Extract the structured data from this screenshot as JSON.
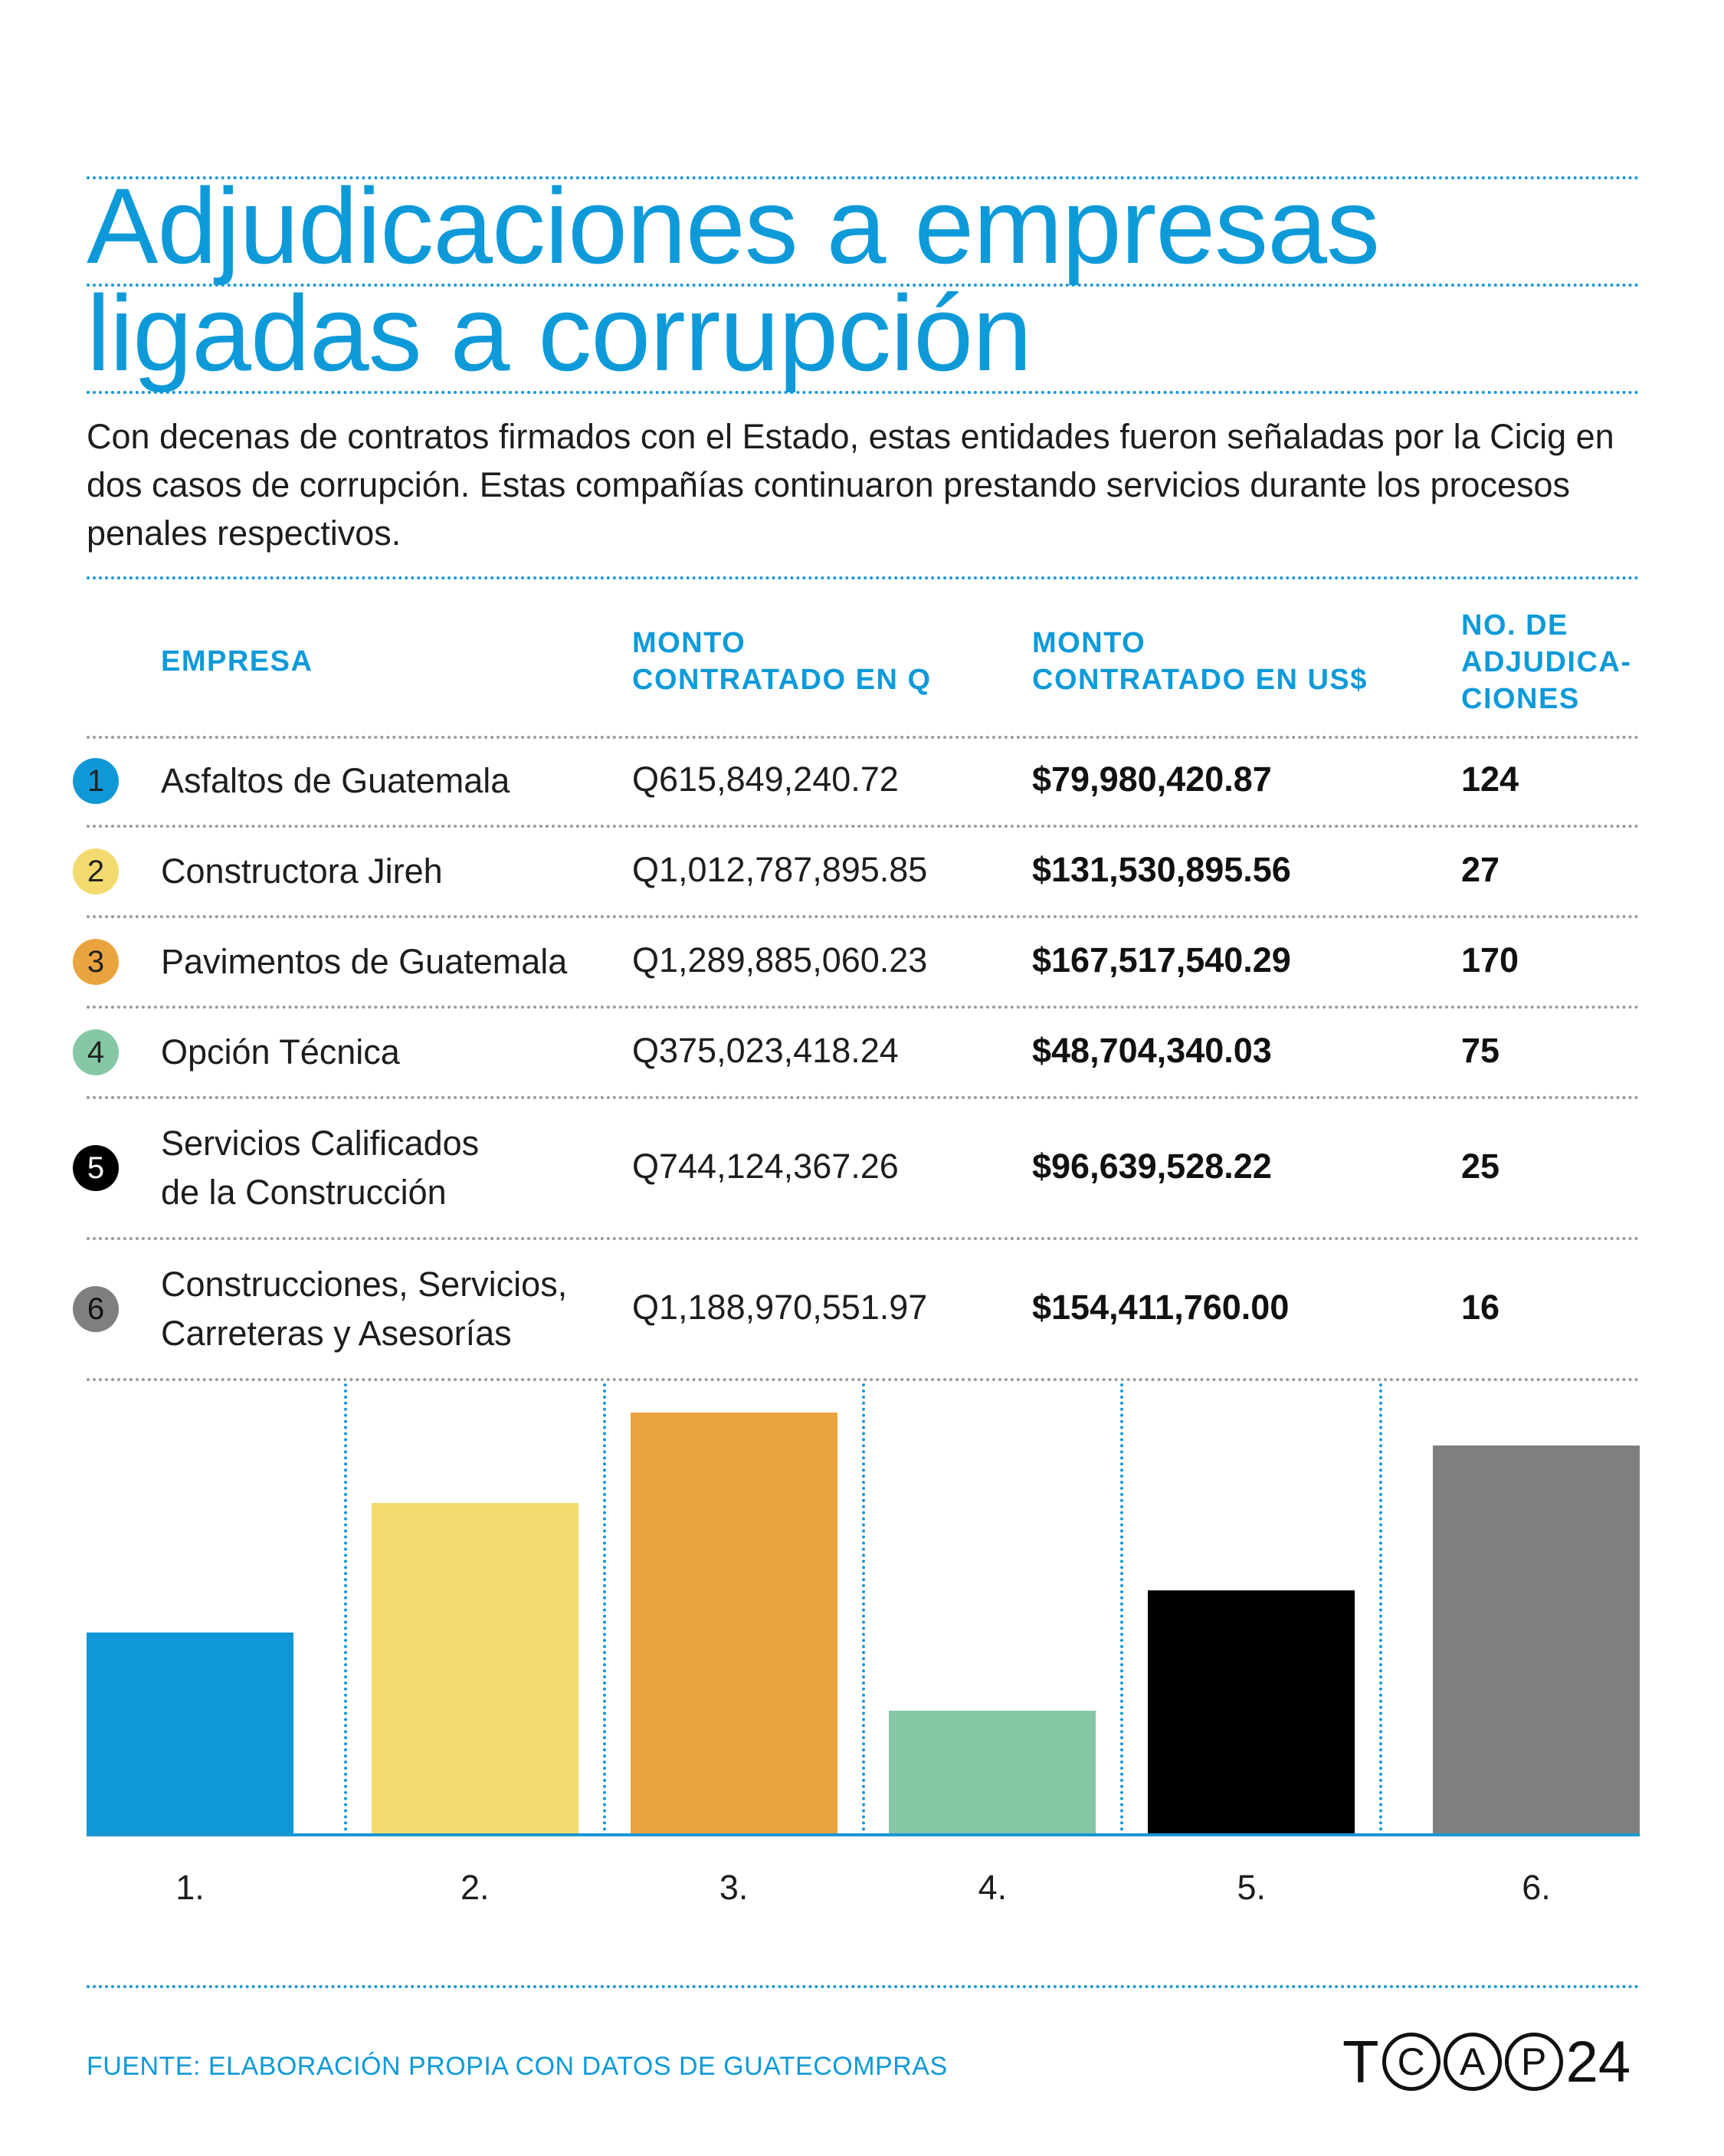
{
  "title": [
    "Adjudicaciones a empresas",
    "ligadas a corrupción"
  ],
  "intro": "Con decenas de contratos firmados con el Estado, estas entidades fueron señaladas por la Cicig en dos casos de corrupción. Estas compañías continuaron prestando servicios durante los procesos penales respectivos.",
  "headers": {
    "empresa": "EMPRESA",
    "monto_q": [
      "MONTO",
      "CONTRATADO EN Q"
    ],
    "monto_usd": [
      "MONTO",
      "CONTRATADO EN US$"
    ],
    "adjudicaciones": [
      "NO. DE",
      "ADJUDICA-",
      "CIONES"
    ]
  },
  "rows": [
    {
      "n": "1",
      "name": [
        "Asfaltos de Guatemala"
      ],
      "q": "Q615,849,240.72",
      "usd": "$79,980,420.87",
      "count": "124",
      "color": "#0f97d6"
    },
    {
      "n": "2",
      "name": [
        "Constructora Jireh"
      ],
      "q": "Q1,012,787,895.85",
      "usd": "$131,530,895.56",
      "count": "27",
      "color": "#f3da6e"
    },
    {
      "n": "3",
      "name": [
        "Pavimentos de Guatemala"
      ],
      "q": "Q1,289,885,060.23",
      "usd": "$167,517,540.29",
      "count": "170",
      "color": "#eaa43f"
    },
    {
      "n": "4",
      "name": [
        "Opción Técnica"
      ],
      "q": "Q375,023,418.24",
      "usd": "$48,704,340.03",
      "count": "75",
      "color": "#86c7a6"
    },
    {
      "n": "5",
      "name": [
        "Servicios Calificados",
        "de la Construcción"
      ],
      "q": "Q744,124,367.26",
      "usd": "$96,639,528.22",
      "count": "25",
      "color": "#000000"
    },
    {
      "n": "6",
      "name": [
        "Construcciones, Servicios,",
        "Carreteras y Asesorías"
      ],
      "q": "Q1,188,970,551.97",
      "usd": "$154,411,760.00",
      "count": "16",
      "color": "#7f7f7f"
    }
  ],
  "chart_data": {
    "type": "bar",
    "categories": [
      "1.",
      "2.",
      "3.",
      "4.",
      "5.",
      "6."
    ],
    "values": [
      79980420.87,
      131530895.56,
      167517540.29,
      48704340.03,
      96639528.22,
      154411760.0
    ],
    "colors": [
      "#0f97d6",
      "#f3da6e",
      "#eaa43f",
      "#86c7a6",
      "#000000",
      "#7f7f7f"
    ],
    "title": "",
    "xlabel": "",
    "ylabel": "",
    "ylim": [
      0,
      180000000
    ],
    "grid": false
  },
  "source": "FUENTE: ELABORACIÓN PROPIA CON DATOS DE GUATECOMPRAS",
  "logo": {
    "t": "T",
    "c1": "C",
    "c2": "A",
    "c3": "P",
    "num": "24"
  }
}
